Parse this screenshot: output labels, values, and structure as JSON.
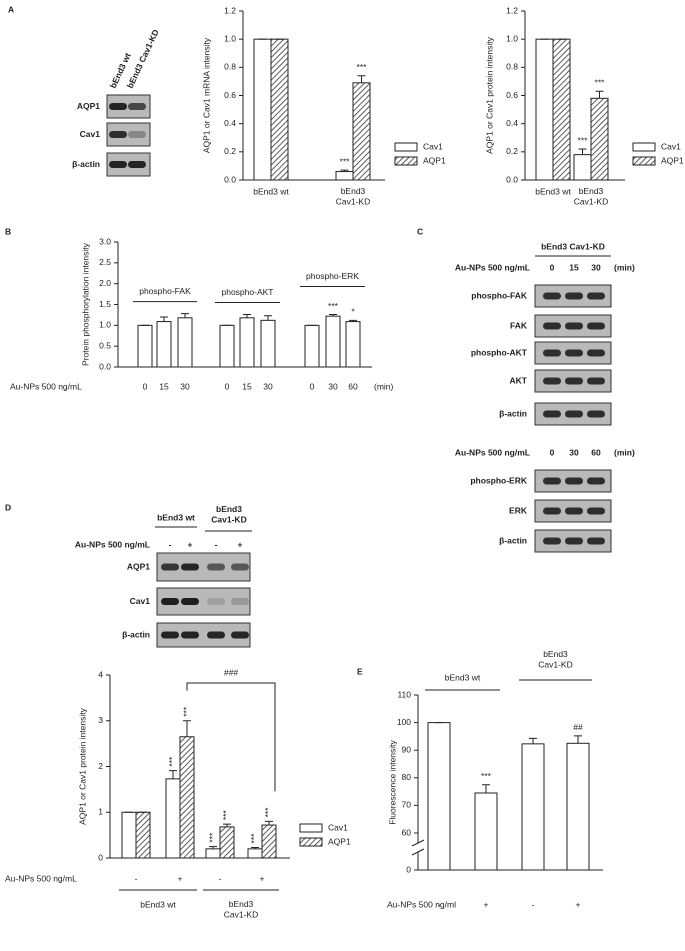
{
  "panel_labels": [
    "A",
    "B",
    "C",
    "D",
    "E"
  ],
  "blots": {
    "A": {
      "columns": [
        "bEnd3 wt",
        "bEnd3 Cav1-KD"
      ],
      "rows": [
        "AQP1",
        "Cav1",
        "β-actin"
      ]
    },
    "C": {
      "header": "bEnd3 Cav1-KD",
      "sections": [
        {
          "treatment": "Au-NPs 500 ng/mL",
          "lanes": [
            0,
            15,
            30
          ],
          "unit": "(min)",
          "rows": [
            "phospho-FAK",
            "FAK",
            "phospho-AKT",
            "AKT",
            "β-actin"
          ]
        },
        {
          "treatment": "Au-NPs 500 ng/mL",
          "lanes": [
            0,
            30,
            60
          ],
          "unit": "(min)",
          "rows": [
            "phospho-ERK",
            "ERK",
            "β-actin"
          ]
        }
      ]
    },
    "D": {
      "groups": [
        "bEnd3 wt",
        "bEnd3\nCav1-KD"
      ],
      "treatment": "Au-NPs 500 ng/mL",
      "lanes": [
        "-",
        "+",
        "-",
        "+"
      ],
      "rows": [
        "AQP1",
        "Cav1",
        "β-actin"
      ]
    }
  },
  "chart_data": [
    {
      "type": "bar",
      "ylabel": "AQP1 or Cav1 mRNA intensity",
      "categories": [
        "bEnd3 wt",
        "bEnd3\nCav1-KD"
      ],
      "series": [
        {
          "name": "Cav1",
          "color": "#ffffff",
          "values": [
            1,
            0.06
          ],
          "errors": [
            0,
            0.01
          ],
          "markers": [
            null,
            "***"
          ]
        },
        {
          "name": "AQP1",
          "color": "#333333",
          "hatch": true,
          "values": [
            1,
            0.69
          ],
          "errors": [
            0,
            0.05
          ],
          "markers": [
            null,
            "***"
          ]
        }
      ],
      "ylim": [
        0,
        1.2
      ],
      "yticks": [
        {
          "value": 0,
          "label": "0.0"
        },
        0.2,
        0.4,
        0.6,
        0.8,
        {
          "value": 1,
          "label": "1.0"
        },
        1.2
      ],
      "legend": "lower right"
    },
    {
      "type": "bar",
      "ylabel": "AQP1 or Cav1 protein intensity",
      "categories": [
        "bEnd3 wt",
        "bEnd3\nCav1-KD"
      ],
      "series": [
        {
          "name": "Cav1",
          "color": "#ffffff",
          "values": [
            1,
            0.18
          ],
          "errors": [
            0,
            0.04
          ],
          "markers": [
            null,
            "***"
          ]
        },
        {
          "name": "AQP1",
          "color": "#333333",
          "hatch": true,
          "values": [
            1,
            0.58
          ],
          "errors": [
            0,
            0.05
          ],
          "markers": [
            null,
            "***"
          ]
        }
      ],
      "ylim": [
        0,
        1.2
      ],
      "yticks": [
        {
          "value": 0,
          "label": "0.0"
        },
        0.2,
        0.4,
        0.6,
        0.8,
        {
          "value": 1,
          "label": "1.0"
        },
        1.2
      ],
      "legend": "lower right"
    },
    {
      "type": "bar",
      "ylabel": "Protein phosphorylation intensity",
      "xlabel": "Au-NPs 500 ng/mL",
      "xunit": "(min)",
      "color": "#ffffff",
      "groups": [
        {
          "label": "phospho-FAK",
          "categories": [
            0,
            15,
            30
          ],
          "values": [
            1,
            1.09,
            1.18
          ],
          "errors": [
            0,
            0.11,
            0.1
          ]
        },
        {
          "label": "phospho-AKT",
          "categories": [
            0,
            15,
            30
          ],
          "values": [
            1,
            1.18,
            1.12
          ],
          "errors": [
            0,
            0.08,
            0.11
          ]
        },
        {
          "label": "phospho-ERK",
          "categories": [
            0,
            30,
            60
          ],
          "values": [
            1,
            1.22,
            1.09
          ],
          "errors": [
            0,
            0.04,
            0.03
          ],
          "markers": [
            null,
            "***",
            "*"
          ]
        }
      ],
      "ylim": [
        0,
        3
      ],
      "yticks": [
        {
          "value": 0,
          "label": "0.0"
        },
        0.5,
        {
          "value": 1,
          "label": "1.0"
        },
        1.5,
        {
          "value": 2,
          "label": "2.0"
        },
        2.5,
        {
          "value": 3,
          "label": "3.0"
        }
      ]
    },
    {
      "type": "bar",
      "ylabel": "AQP1 or Cav1 protein intensity",
      "xlabel": "Au-NPs 500 ng/mL",
      "groups": [
        {
          "label": "bEnd3 wt",
          "categories": [
            "-",
            "+"
          ]
        },
        {
          "label": "bEnd3\nCav1-KD",
          "categories": [
            "-",
            "+"
          ]
        }
      ],
      "series": [
        {
          "name": "Cav1",
          "color": "#ffffff",
          "values": [
            1,
            1.73,
            0.2,
            0.2
          ],
          "errors": [
            0,
            0.18,
            0.05,
            0.03
          ],
          "markers": [
            null,
            "***",
            "***",
            "***"
          ]
        },
        {
          "name": "AQP1",
          "color": "#333333",
          "hatch": true,
          "values": [
            1,
            2.65,
            0.68,
            0.72
          ],
          "errors": [
            0,
            0.35,
            0.06,
            0.08
          ],
          "markers": [
            null,
            "***",
            "***",
            "***"
          ]
        }
      ],
      "rotate_markers": true,
      "bracket_label": "###",
      "ylim": [
        0,
        4
      ],
      "yticks": [
        0,
        1,
        2,
        3,
        4
      ],
      "legend": "lower right"
    },
    {
      "type": "bar",
      "ylabel": "Fluorescence intensity",
      "xlabel": "Au-NPs 500 ng/ml",
      "color": "#ffffff",
      "groups": [
        {
          "label": "bEnd3 wt",
          "categories": [
            "-",
            "+"
          ]
        },
        {
          "label": "bEnd3\nCav1-KD",
          "categories": [
            "-",
            "+"
          ]
        }
      ],
      "values": [
        100,
        74.5,
        92.3,
        92.5
      ],
      "errors": [
        0,
        3,
        2,
        2.7
      ],
      "markers": [
        null,
        "***",
        null,
        "##"
      ],
      "ylim": [
        60,
        110
      ],
      "yticks": [
        60,
        70,
        80,
        90,
        100,
        110
      ],
      "ybreak_tick": 0
    }
  ]
}
